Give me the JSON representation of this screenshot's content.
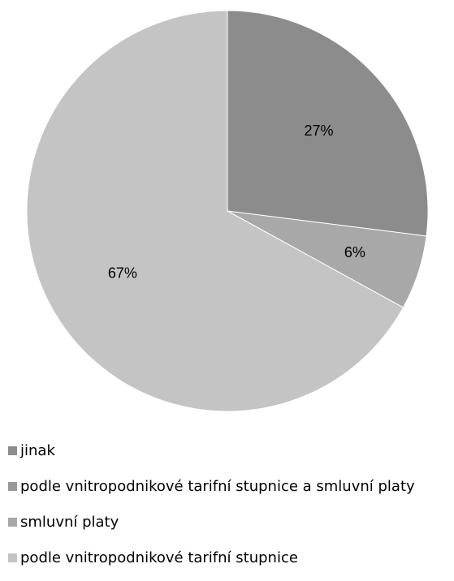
{
  "chart_data": {
    "type": "pie",
    "categories": [
      "jinak",
      "podle vnitropodnikové tarifní stupnice a smluvní platy",
      "smluvní platy",
      "podle vnitropodnikové tarifní stupnice"
    ],
    "values": [
      27,
      0,
      6,
      67
    ],
    "data_labels": [
      "27%",
      "",
      "6%",
      "67%"
    ],
    "colors": [
      "#8c8c8c",
      "#9a9a9a",
      "#a8a8a8",
      "#c4c4c4"
    ],
    "start_angle": "12 o'clock",
    "direction": "clockwise",
    "legend": "bottom-left"
  }
}
